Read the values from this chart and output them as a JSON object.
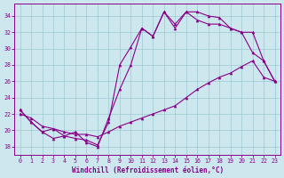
{
  "xlabel": "Windchill (Refroidissement éolien,°C)",
  "background_color": "#cce8ee",
  "line_color": "#880088",
  "xlim": [
    -0.5,
    23.5
  ],
  "ylim": [
    17.0,
    35.5
  ],
  "yticks": [
    18,
    20,
    22,
    24,
    26,
    28,
    30,
    32,
    34
  ],
  "xticks": [
    0,
    1,
    2,
    3,
    4,
    5,
    6,
    7,
    8,
    9,
    10,
    11,
    12,
    13,
    14,
    15,
    16,
    17,
    18,
    19,
    20,
    21,
    22,
    23
  ],
  "line1_x": [
    0,
    1,
    2,
    3,
    4,
    5,
    6,
    7,
    8,
    9,
    10,
    11,
    12,
    13,
    14,
    15,
    16,
    17,
    18,
    19,
    20,
    21,
    22,
    23
  ],
  "line1_y": [
    22.5,
    21.0,
    19.8,
    19.0,
    19.3,
    19.0,
    18.8,
    18.2,
    21.0,
    28.0,
    30.2,
    32.5,
    31.5,
    34.5,
    32.5,
    34.5,
    34.5,
    34.0,
    33.8,
    32.5,
    32.0,
    29.5,
    28.5,
    26.0
  ],
  "line2_x": [
    0,
    1,
    2,
    3,
    4,
    5,
    6,
    7,
    8,
    9,
    10,
    11,
    12,
    13,
    14,
    15,
    16,
    17,
    18,
    19,
    20,
    21,
    22,
    23
  ],
  "line2_y": [
    22.0,
    21.5,
    20.5,
    20.2,
    19.8,
    19.5,
    19.5,
    19.2,
    19.8,
    20.5,
    21.0,
    21.5,
    22.0,
    22.5,
    23.0,
    24.0,
    25.0,
    25.8,
    26.5,
    27.0,
    27.8,
    28.5,
    26.5,
    26.0
  ],
  "line3_x": [
    0,
    1,
    2,
    3,
    4,
    5,
    6,
    7,
    8,
    9,
    10,
    11,
    12,
    13,
    14,
    15,
    16,
    17,
    18,
    19,
    20,
    21,
    22,
    23
  ],
  "line3_y": [
    22.5,
    21.0,
    19.8,
    20.2,
    19.3,
    19.8,
    18.5,
    18.0,
    21.5,
    25.0,
    28.0,
    32.5,
    31.5,
    34.5,
    33.0,
    34.5,
    33.5,
    33.0,
    33.0,
    32.5,
    32.0,
    32.0,
    28.5,
    26.0
  ],
  "grid_color": "#9dc8d4"
}
